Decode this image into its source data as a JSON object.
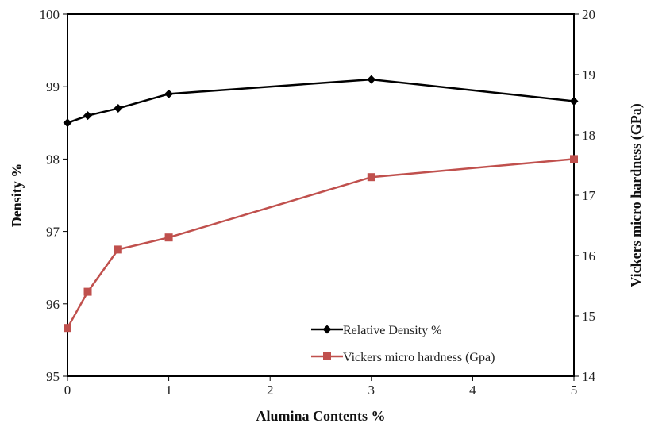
{
  "chart_data": {
    "type": "line",
    "x": [
      0,
      0.2,
      0.5,
      1,
      3,
      5
    ],
    "xlabel": "Alumina Contents %",
    "ylabel_left": "Density %",
    "ylabel_right": "Vickers micro hardness  (GPa)",
    "xlim": [
      0,
      5
    ],
    "ylim_left": [
      95,
      100
    ],
    "ylim_right": [
      14,
      20
    ],
    "x_ticks": [
      "0",
      "1",
      "2",
      "3",
      "4",
      "5"
    ],
    "y_left_ticks": [
      "95",
      "96",
      "97",
      "98",
      "99",
      "100"
    ],
    "y_right_ticks": [
      "14",
      "15",
      "16",
      "17",
      "18",
      "19",
      "20"
    ],
    "grid": false,
    "legend_position": "bottom-right",
    "series": [
      {
        "name": "Relative Density %",
        "axis": "left",
        "marker": "diamond",
        "color": "#000000",
        "values": [
          98.5,
          98.6,
          98.7,
          98.9,
          99.1,
          98.8
        ]
      },
      {
        "name": "Vickers micro hardness (Gpa)",
        "axis": "right",
        "marker": "square",
        "color": "#C0504D",
        "values": [
          14.8,
          15.4,
          16.1,
          16.3,
          17.3,
          17.6
        ]
      }
    ]
  }
}
